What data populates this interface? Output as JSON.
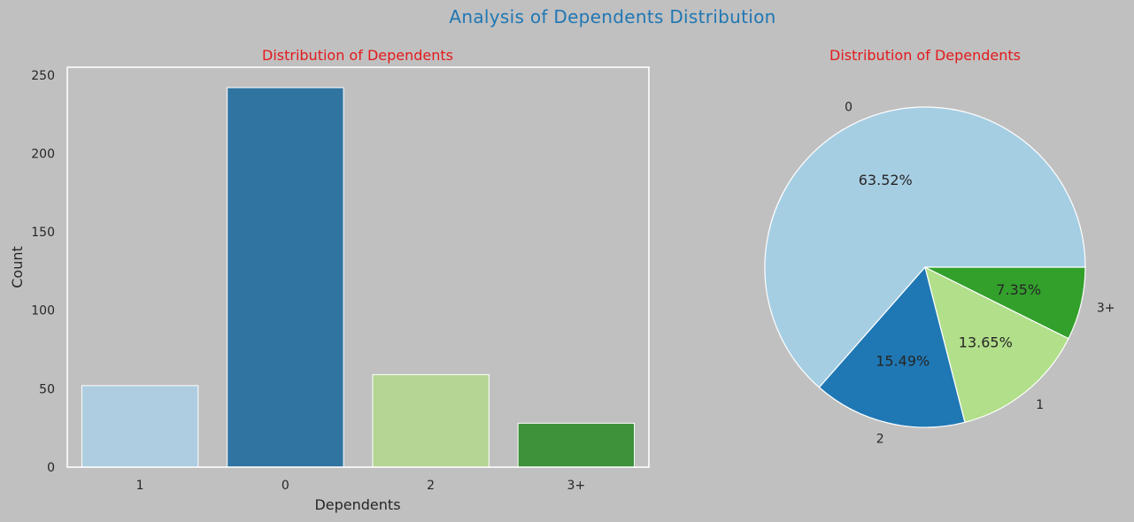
{
  "figure": {
    "title": "Analysis of Dependents Distribution",
    "title_color": "#1f77b4",
    "background": "#c0c0c0",
    "subtitle_color": "#e31a1c",
    "text_color": "#262626"
  },
  "chart_data": [
    {
      "type": "bar",
      "title": "Distribution of Dependents",
      "xlabel": "Dependents",
      "ylabel": "Count",
      "categories": [
        "1",
        "0",
        "2",
        "3+"
      ],
      "values": [
        52,
        242,
        59,
        28
      ],
      "colors": [
        "#aecde0",
        "#3074a2",
        "#b5d595",
        "#3d923a"
      ],
      "ylim": [
        0,
        255
      ],
      "yticks": [
        0,
        50,
        100,
        150,
        200,
        250
      ],
      "grid": false
    },
    {
      "type": "pie",
      "title": "Distribution of Dependents",
      "labels": [
        "0",
        "2",
        "1",
        "3+"
      ],
      "values": [
        63.52,
        15.49,
        13.65,
        7.35
      ],
      "pct_labels": [
        "63.52%",
        "15.49%",
        "13.65%",
        "7.35%"
      ],
      "colors": [
        "#a6cee3",
        "#1f78b4",
        "#b2df8a",
        "#33a02c"
      ]
    }
  ]
}
